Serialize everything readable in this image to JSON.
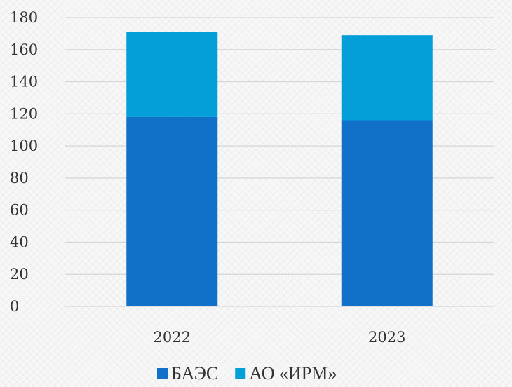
{
  "chart_data": {
    "type": "bar",
    "stacked": true,
    "categories": [
      "2022",
      "2023"
    ],
    "series": [
      {
        "name": "БАЭС",
        "values": [
          118,
          116
        ],
        "color": "#1170c8"
      },
      {
        "name": "АО «ИРМ»",
        "values": [
          53,
          53
        ],
        "color": "#049fd9"
      }
    ],
    "y_ticks": [
      "0",
      "20",
      "40",
      "60",
      "80",
      "100",
      "120",
      "140",
      "160",
      "180"
    ],
    "ylim": [
      0,
      180
    ],
    "grid": true,
    "legend_position": "bottom",
    "title": "",
    "xlabel": "",
    "ylabel": ""
  }
}
